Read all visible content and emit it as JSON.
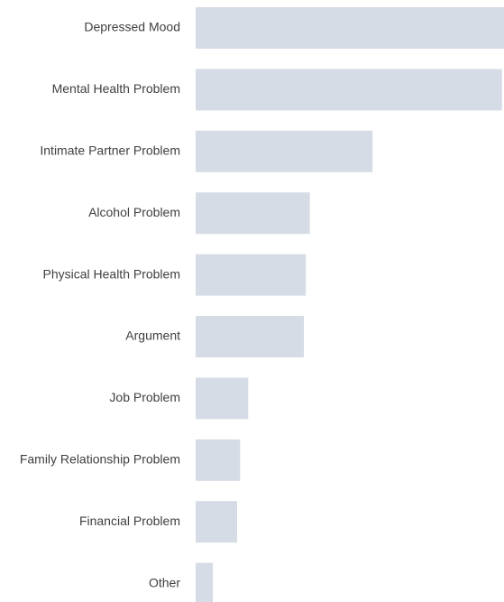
{
  "chart_data": {
    "type": "barh",
    "categories": [
      "Depressed Mood",
      "Mental Health Problem",
      "Intimate Partner Problem",
      "Alcohol Problem",
      "Physical Health Problem",
      "Argument",
      "Job Problem",
      "Family Relationship Problem",
      "Financial Problem",
      "Other"
    ],
    "values": [
      30.5,
      30.3,
      17.5,
      11.3,
      10.9,
      10.7,
      5.2,
      4.4,
      4.1,
      1.7
    ],
    "color": "#d6dce5"
  }
}
